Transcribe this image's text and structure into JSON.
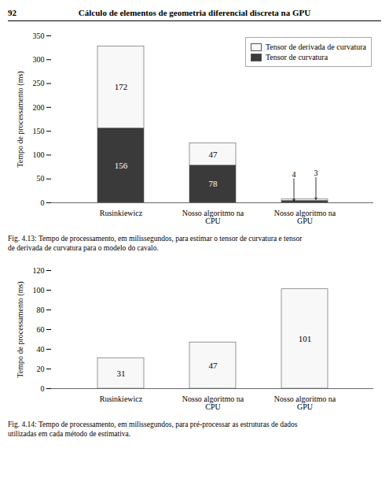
{
  "page_title": "92",
  "page_header": "Cálculo de elementos de geometria diferencial discreta na GPU",
  "chart_data": [
    {
      "type": "bar",
      "stacked": true,
      "categories": [
        "Rusinkiewicz",
        "Nosso algoritmo na\nCPU",
        "Nosso algoritmo na\nGPU"
      ],
      "series": [
        {
          "name": "Tensor de curvatura",
          "color": "#3a3a3a",
          "values": [
            156,
            78,
            4
          ]
        },
        {
          "name": "Tensor de derivada de curvatura",
          "color": "#f8f8f8",
          "values": [
            172,
            47,
            3
          ]
        }
      ],
      "ylim": [
        0,
        350
      ],
      "yticks": [
        0,
        50,
        100,
        150,
        200,
        250,
        300,
        350
      ],
      "ylabel": "Tempo de processamento (ms)",
      "legend": "upper right",
      "data_labels": true,
      "caption": "Fig. 4.13: Tempo de processamento, em milissegundos, para estimar o tensor de curvatura e tensor\nde derivada de curvatura para o modelo do cavalo."
    },
    {
      "type": "bar",
      "categories": [
        "Rusinkiewicz",
        "Nosso algoritmo na\nCPU",
        "Nosso algoritmo na\nGPU"
      ],
      "values": [
        31,
        47,
        101
      ],
      "color": "#f8f8f8",
      "ylim": [
        0,
        120
      ],
      "yticks": [
        0,
        20,
        40,
        60,
        80,
        100,
        120
      ],
      "ylabel": "Tempo de processamento (ms)",
      "data_labels": true,
      "caption": "Fig. 4.14: Tempo de processamento, em milissegundos, para pré-processar as estruturas de dados\nutilizadas em cada método de estimativa."
    }
  ]
}
